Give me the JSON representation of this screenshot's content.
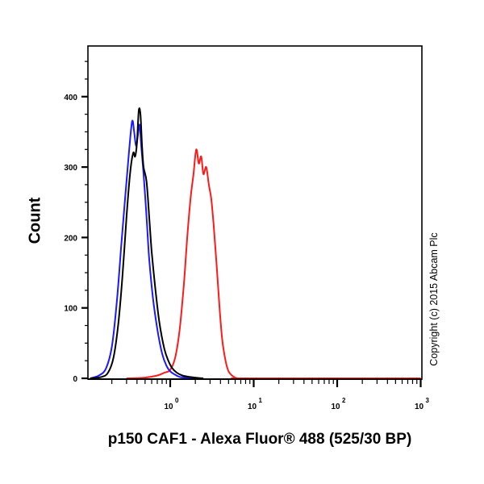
{
  "chart_data": {
    "type": "line",
    "title": "",
    "xlabel": "p150 CAF1 - Alexa Fluor® 488 (525/30 BP)",
    "ylabel": "Count",
    "xscale": "log",
    "xlim": [
      0.11,
      1000
    ],
    "ylim": [
      0,
      400
    ],
    "ylim_display_max": 465,
    "y_ticks": [
      0,
      100,
      200,
      300,
      400
    ],
    "y_tick_labels": [
      "0",
      "100",
      "200",
      "300",
      "400"
    ],
    "x_ticks": [
      1,
      10,
      100,
      1000
    ],
    "x_tick_labels": [
      {
        "base": "10",
        "exp": "0"
      },
      {
        "base": "10",
        "exp": "1"
      },
      {
        "base": "10",
        "exp": "2"
      },
      {
        "base": "10",
        "exp": "3"
      }
    ],
    "grid": false,
    "legend": null,
    "annotation": "Copyright (c) 2015 Abcam Plc",
    "series": [
      {
        "name": "blue",
        "color": "#1a1aff",
        "x": [
          0.11,
          0.14,
          0.17,
          0.2,
          0.23,
          0.26,
          0.29,
          0.32,
          0.35,
          0.37,
          0.39,
          0.41,
          0.43,
          0.45,
          0.48,
          0.52,
          0.56,
          0.62,
          0.7,
          0.8,
          0.9,
          1.0,
          1.15,
          1.3,
          1.5,
          1.8,
          2.2
        ],
        "y": [
          0,
          4,
          14,
          45,
          110,
          190,
          260,
          320,
          365,
          350,
          330,
          345,
          360,
          330,
          290,
          230,
          170,
          115,
          70,
          35,
          18,
          10,
          5,
          2,
          1,
          0,
          0
        ]
      },
      {
        "name": "black",
        "color": "#000000",
        "x": [
          0.11,
          0.15,
          0.18,
          0.21,
          0.24,
          0.27,
          0.3,
          0.33,
          0.36,
          0.38,
          0.4,
          0.42,
          0.44,
          0.46,
          0.48,
          0.52,
          0.56,
          0.6,
          0.66,
          0.74,
          0.85,
          0.95,
          1.05,
          1.2,
          1.4,
          1.7,
          2.0,
          2.5
        ],
        "y": [
          0,
          2,
          8,
          30,
          80,
          150,
          230,
          290,
          320,
          315,
          335,
          380,
          375,
          330,
          300,
          280,
          230,
          180,
          130,
          80,
          42,
          25,
          15,
          8,
          4,
          2,
          1,
          0
        ]
      },
      {
        "name": "red",
        "color": "#ff1a1a",
        "x": [
          0.3,
          0.5,
          0.7,
          0.85,
          1.0,
          1.15,
          1.3,
          1.45,
          1.6,
          1.75,
          1.9,
          2.05,
          2.2,
          2.35,
          2.5,
          2.7,
          2.9,
          3.1,
          3.3,
          3.6,
          3.9,
          4.2,
          4.6,
          5.0,
          5.5,
          6.0,
          6.5,
          7.2,
          8.0,
          1000
        ],
        "y": [
          0,
          1,
          4,
          8,
          12,
          30,
          70,
          130,
          200,
          255,
          290,
          325,
          305,
          315,
          290,
          300,
          275,
          255,
          220,
          160,
          100,
          55,
          25,
          10,
          4,
          1,
          0,
          0,
          0,
          0
        ]
      }
    ]
  }
}
